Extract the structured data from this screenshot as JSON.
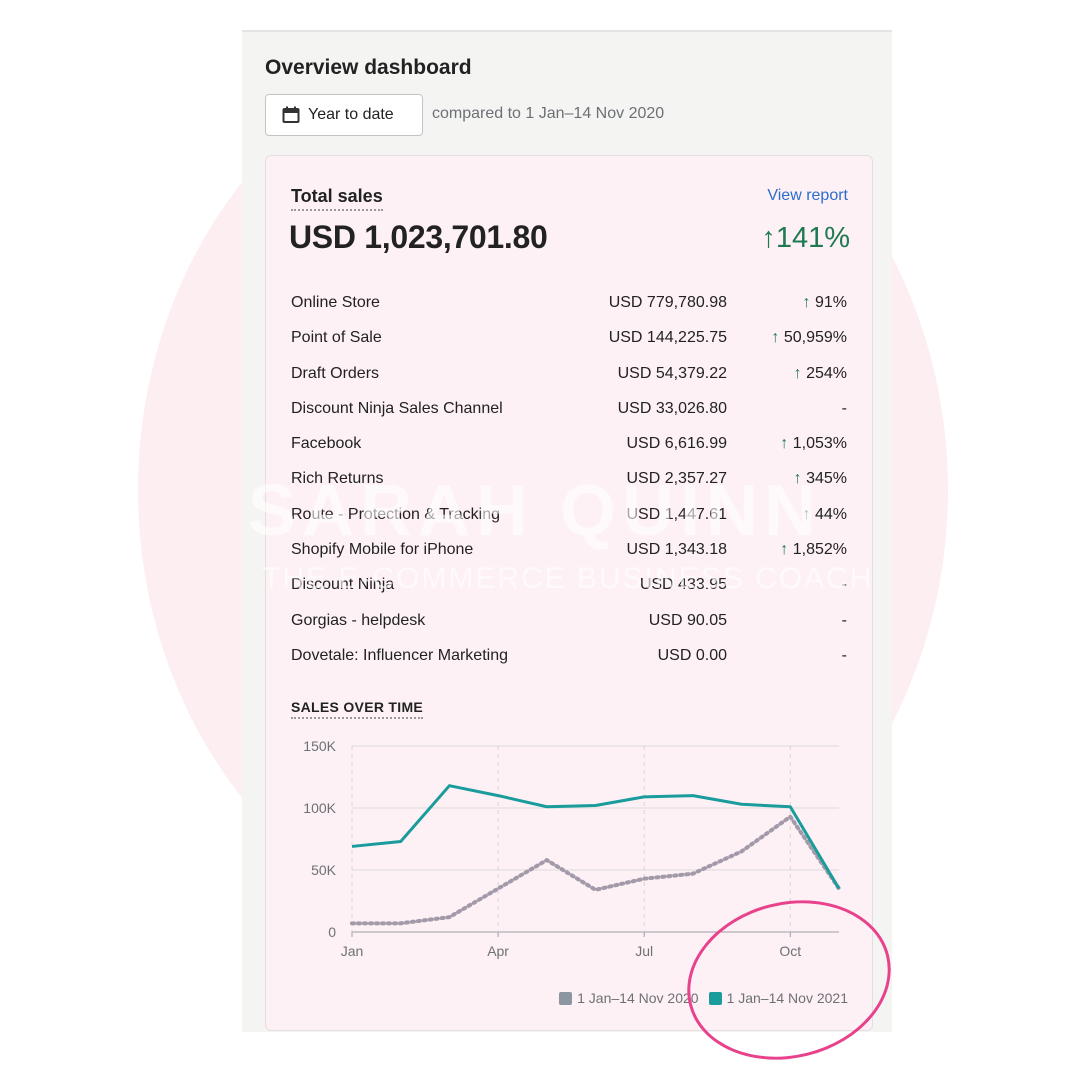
{
  "header": {
    "title": "Overview dashboard",
    "date_button_label": "Year to date",
    "compare_text": "compared to 1 Jan–14 Nov 2020"
  },
  "total_sales": {
    "title": "Total sales",
    "view_report": "View report",
    "value": "USD 1,023,701.80",
    "change": "↑141%"
  },
  "rows": [
    {
      "name": "Online Store",
      "amount": "USD 779,780.98",
      "change": "91%",
      "arrow": "↑"
    },
    {
      "name": "Point of Sale",
      "amount": "USD 144,225.75",
      "change": "50,959%",
      "arrow": "↑"
    },
    {
      "name": "Draft Orders",
      "amount": "USD 54,379.22",
      "change": "254%",
      "arrow": "↑"
    },
    {
      "name": "Discount Ninja Sales Channel",
      "amount": "USD 33,026.80",
      "change": "-",
      "arrow": ""
    },
    {
      "name": "Facebook",
      "amount": "USD 6,616.99",
      "change": "1,053%",
      "arrow": "↑"
    },
    {
      "name": "Rich Returns",
      "amount": "USD 2,357.27",
      "change": "345%",
      "arrow": "↑"
    },
    {
      "name": "Route - Protection & Tracking",
      "amount": "USD 1,447.61",
      "change": "44%",
      "arrow": "↑"
    },
    {
      "name": "Shopify Mobile for iPhone",
      "amount": "USD 1,343.18",
      "change": "1,852%",
      "arrow": "↑"
    },
    {
      "name": "Discount Ninja",
      "amount": "USD 433.95",
      "change": "-",
      "arrow": ""
    },
    {
      "name": "Gorgias - helpdesk",
      "amount": "USD 90.05",
      "change": "-",
      "arrow": ""
    },
    {
      "name": "Dovetale: Influencer Marketing",
      "amount": "USD 0.00",
      "change": "-",
      "arrow": ""
    }
  ],
  "chart": {
    "title": "SALES OVER TIME",
    "legend": [
      {
        "label": "1 Jan–14 Nov 2020",
        "color": "#8c96a3"
      },
      {
        "label": "1 Jan–14 Nov 2021",
        "color": "#1a9c9c"
      }
    ]
  },
  "chart_data": {
    "type": "line",
    "y_ticks": [
      "0",
      "50K",
      "100K",
      "150K"
    ],
    "x_ticks": [
      "Jan",
      "Apr",
      "Jul",
      "Oct"
    ],
    "ylim": [
      0,
      150000
    ],
    "x": [
      0,
      1,
      2,
      3,
      4,
      5,
      6,
      7,
      8,
      9,
      10
    ],
    "x_tick_positions": [
      0,
      3,
      6,
      9
    ],
    "series": [
      {
        "name": "1 Jan–14 Nov 2020",
        "values": [
          7000,
          7000,
          12000,
          35000,
          58000,
          34000,
          43000,
          47000,
          65000,
          93000,
          35000
        ],
        "color": "#a29aa8",
        "style": "dotted"
      },
      {
        "name": "1 Jan–14 Nov 2021",
        "values": [
          69000,
          73000,
          118000,
          110000,
          101000,
          102000,
          109000,
          110000,
          103000,
          101000,
          35000
        ],
        "color": "#1a9c9c",
        "style": "solid"
      }
    ]
  },
  "watermark": {
    "line1": "SARAH QUINN",
    "line2": "THE E-COMMERCE BUSINESS COACH"
  }
}
